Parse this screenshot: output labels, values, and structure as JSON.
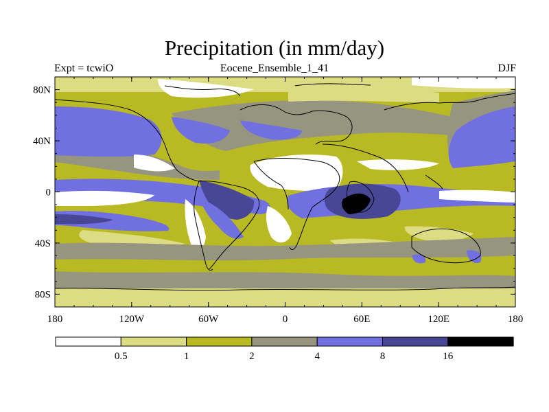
{
  "title": "Precipitation (in mm/day)",
  "subtitle_left": "Expt = tcwiO",
  "subtitle_center": "Eocene_Ensemble_1_41",
  "subtitle_right": "DJF",
  "colors": {
    "bin0": "#ffffff",
    "bin1": "#dcdc82",
    "bin2": "#b9b923",
    "bin3": "#969680",
    "bin4": "#7070e0",
    "bin5": "#474796",
    "bin6": "#000000"
  },
  "map": {
    "lon_range": [
      -180,
      180
    ],
    "lat_range": [
      -90,
      90
    ],
    "x_ticks": [
      {
        "value": -180,
        "label": "180"
      },
      {
        "value": -120,
        "label": "120W"
      },
      {
        "value": -60,
        "label": "60W"
      },
      {
        "value": 0,
        "label": "0"
      },
      {
        "value": 60,
        "label": "60E"
      },
      {
        "value": 120,
        "label": "120E"
      },
      {
        "value": 180,
        "label": "180"
      }
    ],
    "y_ticks": [
      {
        "value": 80,
        "label": "80N"
      },
      {
        "value": 40,
        "label": "40N"
      },
      {
        "value": 0,
        "label": "0"
      },
      {
        "value": -40,
        "label": "40S"
      },
      {
        "value": -80,
        "label": "80S"
      }
    ]
  },
  "colorbar": {
    "levels": [
      "0.5",
      "1",
      "2",
      "4",
      "8",
      "16"
    ]
  }
}
